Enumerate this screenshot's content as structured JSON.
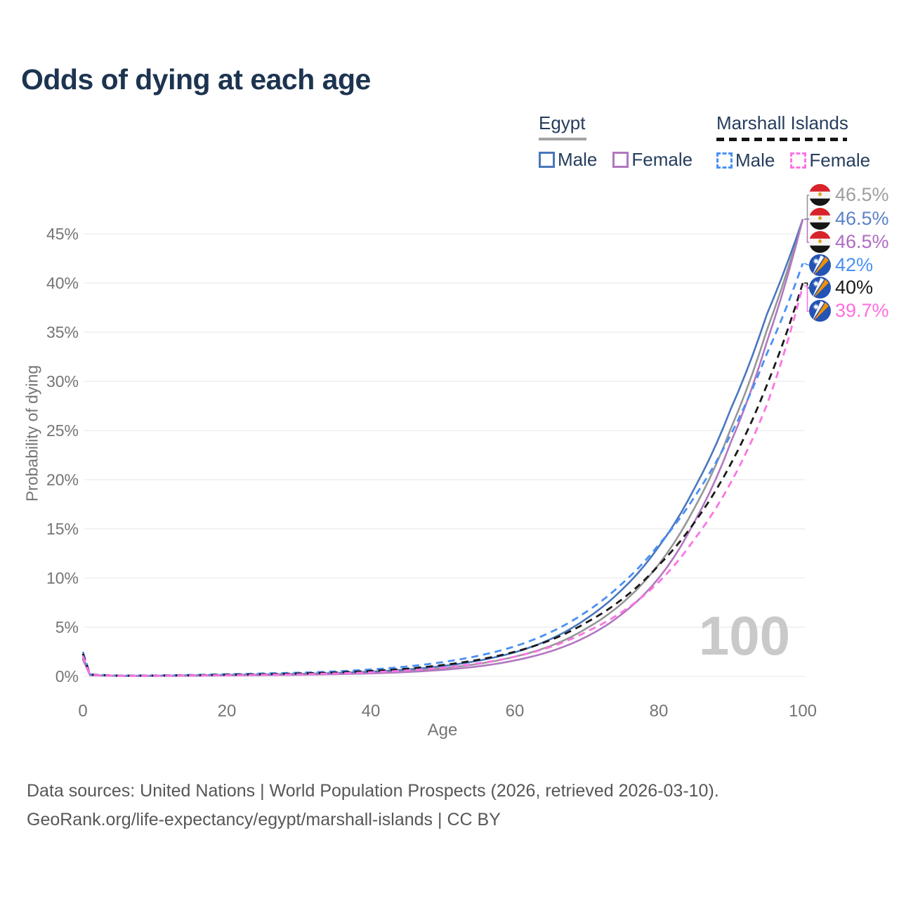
{
  "title": "Odds of dying at each age",
  "watermark": "100",
  "legend": {
    "egypt": {
      "title": "Egypt",
      "male": "Male",
      "female": "Female"
    },
    "marshall": {
      "title": "Marshall Islands",
      "male": "Male",
      "female": "Female"
    }
  },
  "footer": {
    "line1": "Data sources: United Nations | World Population Prospects (2026, retrieved 2026-03-10).",
    "line2": "GeoRank.org/life-expectancy/egypt/marshall-islands | CC BY"
  },
  "chart_data": {
    "type": "line",
    "title": "Odds of dying at each age",
    "xlabel": "Age",
    "ylabel": "Probability of dying",
    "x_ticks": [
      0,
      20,
      40,
      60,
      80,
      100
    ],
    "y_ticks": [
      "0%",
      "5%",
      "10%",
      "15%",
      "20%",
      "25%",
      "30%",
      "35%",
      "40%",
      "45%"
    ],
    "xlim": [
      0,
      100
    ],
    "ylim_pct": [
      0,
      48.5
    ],
    "grid": "horizontal",
    "legend_position": "top-right",
    "ages": [
      0,
      1,
      5,
      10,
      15,
      20,
      25,
      30,
      35,
      40,
      45,
      50,
      55,
      60,
      65,
      70,
      75,
      80,
      85,
      90,
      95,
      100
    ],
    "series": [
      {
        "name": "Egypt",
        "flag": "egypt",
        "style": "solid",
        "color": "#969696",
        "values": [
          1.8,
          0.12,
          0.05,
          0.05,
          0.08,
          0.12,
          0.15,
          0.2,
          0.27,
          0.38,
          0.55,
          0.83,
          1.28,
          2.0,
          3.1,
          4.9,
          7.5,
          11.4,
          17.2,
          25.2,
          35.2,
          46.5
        ],
        "end_label": "46.5%",
        "end_label_color": "#9e9e9e"
      },
      {
        "name": "Egypt Male",
        "flag": "egypt",
        "style": "solid",
        "color": "#4a77bd",
        "values": [
          1.9,
          0.13,
          0.055,
          0.06,
          0.1,
          0.15,
          0.19,
          0.25,
          0.34,
          0.48,
          0.7,
          1.05,
          1.6,
          2.45,
          3.8,
          5.9,
          8.9,
          13.2,
          19.2,
          27.2,
          36.8,
          46.5
        ],
        "end_label": "46.5%",
        "end_label_color": "#5b82c9"
      },
      {
        "name": "Egypt Female",
        "flag": "egypt",
        "style": "solid",
        "color": "#b178bf",
        "values": [
          1.7,
          0.11,
          0.045,
          0.045,
          0.06,
          0.09,
          0.12,
          0.16,
          0.22,
          0.3,
          0.44,
          0.66,
          1.02,
          1.62,
          2.55,
          4.05,
          6.4,
          10.0,
          15.8,
          23.8,
          34.0,
          46.5
        ],
        "end_label": "46.5%",
        "end_label_color": "#ad6cc3"
      },
      {
        "name": "Marshall Islands Male",
        "flag": "marshall-islands",
        "style": "dashed",
        "color": "#4a90f4",
        "values": [
          2.5,
          0.2,
          0.08,
          0.09,
          0.14,
          0.22,
          0.29,
          0.37,
          0.5,
          0.7,
          1.0,
          1.45,
          2.1,
          3.05,
          4.5,
          6.6,
          9.5,
          13.4,
          18.3,
          24.6,
          32.8,
          42.0
        ],
        "end_label": "42%",
        "end_label_color": "#4a90f4"
      },
      {
        "name": "Marshall Islands",
        "flag": "marshall-islands",
        "style": "dashed",
        "color": "#1a1a1a",
        "values": [
          2.3,
          0.18,
          0.07,
          0.08,
          0.11,
          0.17,
          0.22,
          0.29,
          0.39,
          0.55,
          0.78,
          1.15,
          1.7,
          2.5,
          3.7,
          5.5,
          7.9,
          11.3,
          15.7,
          21.6,
          29.6,
          40.0
        ],
        "end_label": "40%",
        "end_label_color": "#1a1a1a"
      },
      {
        "name": "Marshall Islands Female",
        "flag": "marshall-islands",
        "style": "dashed",
        "color": "#fb74e4",
        "values": [
          2.1,
          0.16,
          0.06,
          0.07,
          0.09,
          0.12,
          0.16,
          0.21,
          0.29,
          0.41,
          0.6,
          0.88,
          1.33,
          2.0,
          3.0,
          4.55,
          6.6,
          9.6,
          14.0,
          19.7,
          27.6,
          39.7
        ],
        "end_label": "39.7%",
        "end_label_color": "#ff6ee0"
      }
    ]
  }
}
